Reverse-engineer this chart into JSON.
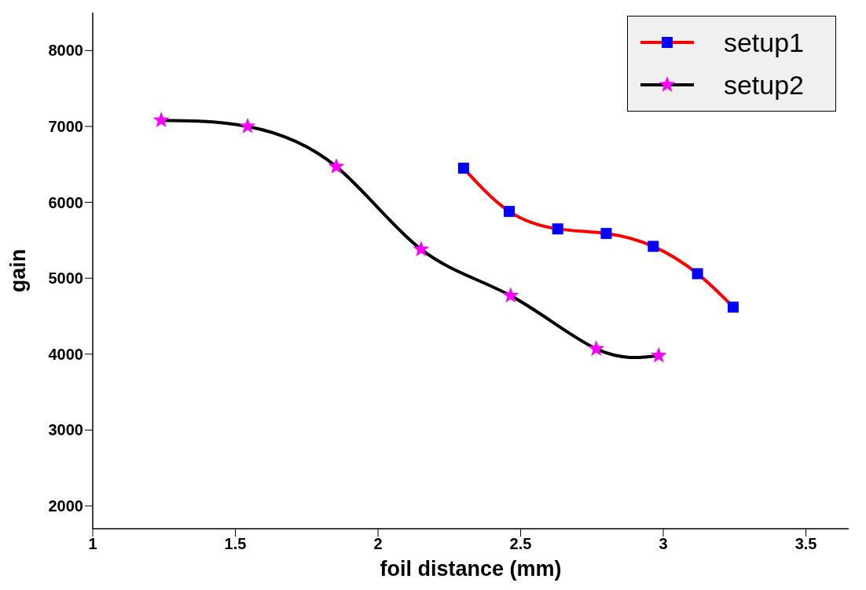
{
  "chart_data": {
    "type": "line",
    "xlabel": "foil distance (mm)",
    "ylabel": "gain",
    "xlim": [
      1,
      3.65
    ],
    "ylim": [
      1700,
      8500
    ],
    "xticks": [
      1,
      1.5,
      2,
      2.5,
      3,
      3.5
    ],
    "yticks": [
      2000,
      3000,
      4000,
      5000,
      6000,
      7000,
      8000
    ],
    "legend": "top right",
    "line_style": "solid",
    "series": [
      {
        "name": "setup1",
        "color": "#ff0000",
        "colors": [
          "#0000ff",
          "#0000ff",
          "#0000ff",
          "#0000ff",
          "#0000ff",
          "#0000ff",
          "#0000ff"
        ],
        "marker": "square",
        "x": [
          2.3,
          2.46,
          2.63,
          2.8,
          2.965,
          3.12,
          3.245
        ],
        "values": [
          6450,
          5880,
          5650,
          5590,
          5420,
          5060,
          4620
        ]
      },
      {
        "name": "setup2",
        "color": "#000000",
        "colors": [
          "#ff00ff",
          "#ff00ff",
          "#ff00ff",
          "#ff00ff",
          "#ff00ff",
          "#ff00ff",
          "#ff00ff"
        ],
        "marker": "star",
        "x": [
          1.24,
          1.543,
          1.854,
          2.151,
          2.465,
          2.765,
          2.984
        ],
        "values": [
          7080,
          7000,
          6470,
          5380,
          4770,
          4070,
          3980
        ]
      }
    ]
  }
}
